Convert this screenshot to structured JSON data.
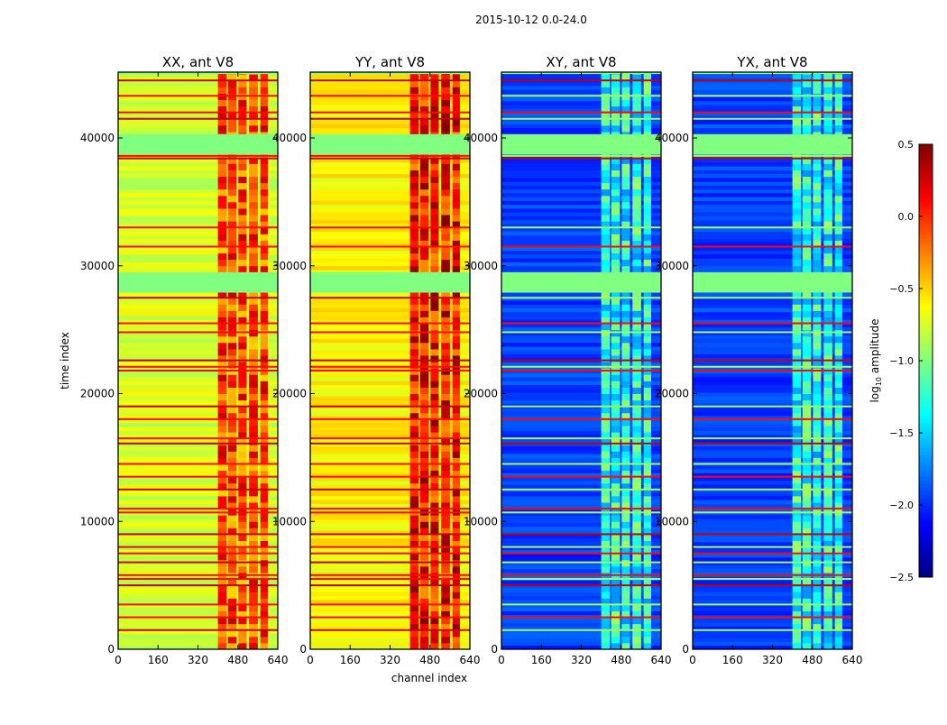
{
  "chart_data": {
    "type": "heatmap",
    "title": "2015-10-12 0.0-24.0",
    "xlabel": "channel index",
    "ylabel": "time index",
    "xlim": [
      0,
      640
    ],
    "ylim": [
      0,
      45150
    ],
    "xticks": [
      "0",
      "160",
      "320",
      "480",
      "640"
    ],
    "yticks": [
      "0",
      "10000",
      "20000",
      "30000",
      "40000"
    ],
    "colorbar": {
      "label": "log10 amplitude",
      "label_main": "log",
      "label_sub": "10",
      "label_rest": " amplitude",
      "range": [
        -2.5,
        0.5
      ],
      "ticks": [
        "0.5",
        "0.0",
        "−0.5",
        "−1.0",
        "−1.5",
        "−2.0",
        "−2.5"
      ],
      "colormap": "jet"
    },
    "rfi_channel_bands": [
      [
        400,
        435
      ],
      [
        440,
        475
      ],
      [
        482,
        515
      ],
      [
        525,
        560
      ],
      [
        570,
        600
      ]
    ],
    "flagged_time_ranges": [
      [
        38700,
        40300
      ],
      [
        27900,
        29500
      ],
      [
        45000,
        45150
      ]
    ],
    "flagged_value": -1.0,
    "line_events_time": [
      44500,
      43300,
      42000,
      41500,
      40150,
      38600,
      38400,
      33000,
      31500,
      27500,
      25500,
      24800,
      22600,
      22100,
      21800,
      19000,
      18000,
      16500,
      16100,
      14500,
      13500,
      12500,
      11000,
      10700,
      9000,
      8000,
      7500,
      6800,
      5800,
      5500,
      5000,
      3500,
      2500,
      1500
    ],
    "line_event_value": 0.1,
    "panels": [
      {
        "title": "XX, ant V8",
        "base_value": -0.75,
        "rfi_value": -0.1,
        "show_xlabel": false
      },
      {
        "title": "YY, ant V8",
        "base_value": -0.6,
        "rfi_value": 0.1,
        "show_xlabel": true
      },
      {
        "title": "XY, ant V8",
        "base_value": -1.95,
        "rfi_value": -1.3,
        "show_xlabel": false
      },
      {
        "title": "YX, ant V8",
        "base_value": -1.95,
        "rfi_value": -1.3,
        "show_xlabel": false
      }
    ]
  }
}
